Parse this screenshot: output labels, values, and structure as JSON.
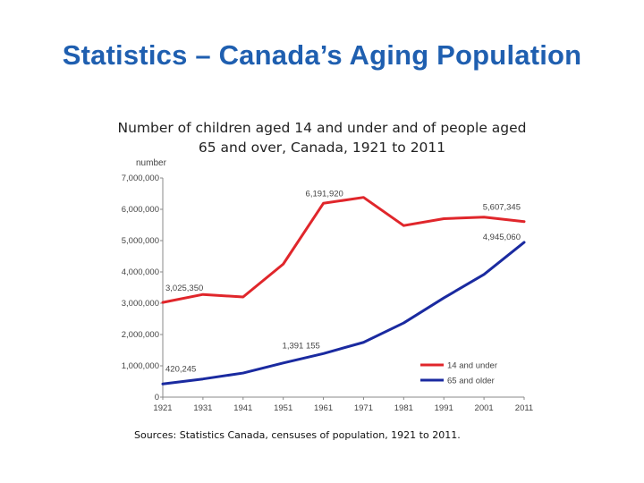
{
  "slide": {
    "title": "Statistics – Canada’s Aging Population",
    "source": "Sources: Statistics Canada, censuses of population, 1921 to 2011."
  },
  "chart_data": {
    "type": "line",
    "title": "Number of children aged 14 and under and of people aged 65 and over, Canada, 1921 to 2011",
    "ylabel": "number",
    "xlabel": "",
    "x": [
      1921,
      1931,
      1941,
      1951,
      1961,
      1971,
      1981,
      1991,
      2001,
      2011
    ],
    "ylim": [
      0,
      7000000
    ],
    "yticks": [
      0,
      1000000,
      2000000,
      3000000,
      4000000,
      5000000,
      6000000,
      7000000
    ],
    "ytick_labels": [
      "0",
      "1,000,000",
      "2,000,000",
      "3,000,000",
      "4,000,000",
      "5,000,000",
      "6,000,000",
      "7,000,000"
    ],
    "xtick_labels": [
      "1921",
      "1931",
      "1941",
      "1951",
      "1961",
      "1971",
      "1981",
      "1991",
      "2001",
      "2011"
    ],
    "grid": false,
    "legend_position": "bottom-right",
    "series": [
      {
        "name": "14 and under",
        "color": "#e0262b",
        "values": [
          3025350,
          3280000,
          3200000,
          4250000,
          6191920,
          6380000,
          5480000,
          5700000,
          5750000,
          5607345
        ]
      },
      {
        "name": "65 and older",
        "color": "#1a2aa0",
        "values": [
          420245,
          580000,
          770000,
          1090000,
          1391155,
          1750000,
          2370000,
          3170000,
          3920000,
          4945060
        ]
      }
    ],
    "annotations": [
      {
        "text": "3,025,350",
        "series": 0,
        "x": 1921,
        "y": 3025350
      },
      {
        "text": "6,191,920",
        "series": 0,
        "x": 1961,
        "y": 6191920
      },
      {
        "text": "5,607,345",
        "series": 0,
        "x": 2011,
        "y": 5607345
      },
      {
        "text": "420,245",
        "series": 1,
        "x": 1921,
        "y": 420245
      },
      {
        "text": "1,391 155",
        "series": 1,
        "x": 1961,
        "y": 1391155
      },
      {
        "text": "4,945,060",
        "series": 1,
        "x": 2011,
        "y": 4945060
      }
    ]
  }
}
